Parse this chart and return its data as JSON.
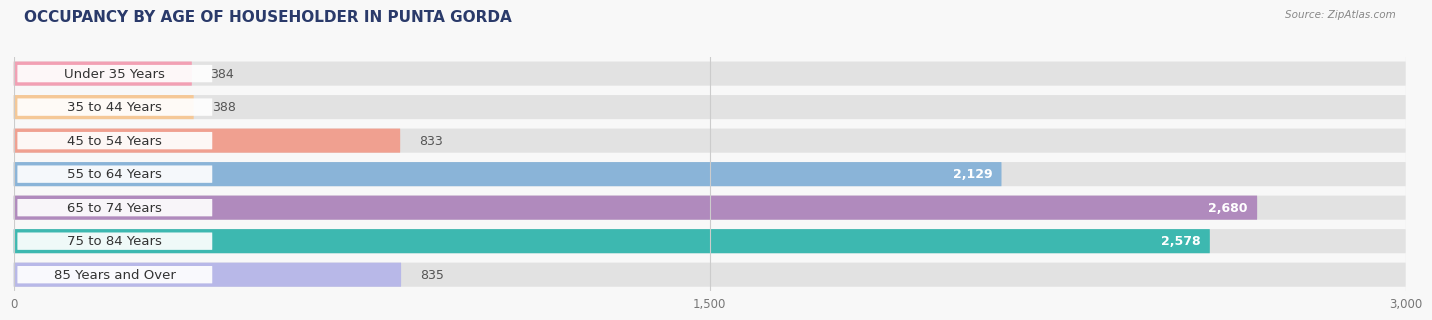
{
  "title": "OCCUPANCY BY AGE OF HOUSEHOLDER IN PUNTA GORDA",
  "source": "Source: ZipAtlas.com",
  "categories": [
    "Under 35 Years",
    "35 to 44 Years",
    "45 to 54 Years",
    "55 to 64 Years",
    "65 to 74 Years",
    "75 to 84 Years",
    "85 Years and Over"
  ],
  "values": [
    384,
    388,
    833,
    2129,
    2680,
    2578,
    835
  ],
  "bar_colors": [
    "#f2a0b4",
    "#f5c897",
    "#f0a090",
    "#8ab4d8",
    "#b08abd",
    "#3db8b0",
    "#b8b8e8"
  ],
  "bg_bar_color": "#e2e2e2",
  "background_color": "#f8f8f8",
  "label_bg_color": "#ffffff",
  "xlim": [
    0,
    3000
  ],
  "xticks": [
    0,
    1500,
    3000
  ],
  "xtick_labels": [
    "0",
    "1,500",
    "3,000"
  ],
  "title_fontsize": 11,
  "label_fontsize": 9.5,
  "value_fontsize": 9,
  "title_color": "#2a3a6a",
  "source_color": "#888888",
  "label_color": "#333333",
  "value_color_inside": "#ffffff",
  "value_color_outside": "#555555",
  "value_threshold": 1200
}
